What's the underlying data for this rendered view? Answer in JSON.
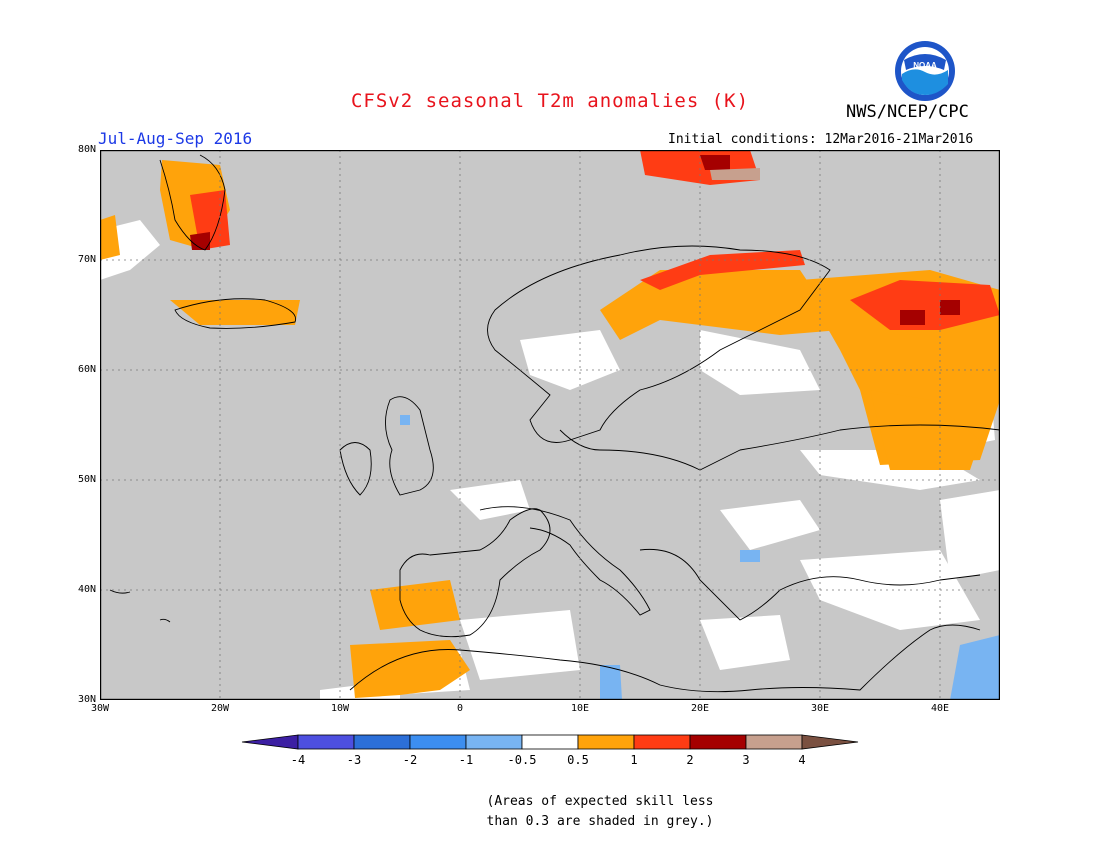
{
  "header": {
    "title": "CFSv2 seasonal T2m anomalies (K)",
    "agency": "NWS/NCEP/CPC",
    "logo_text": "NOAA",
    "season": "Jul-Aug-Sep 2016",
    "initial_conditions": "Initial conditions: 12Mar2016-21Mar2016"
  },
  "map": {
    "lon_labels": [
      "30W",
      "20W",
      "10W",
      "0",
      "10E",
      "20E",
      "30E",
      "40E"
    ],
    "lat_labels": [
      "80N",
      "70N",
      "60N",
      "50N",
      "40N",
      "30N"
    ],
    "lon_range": [
      -30,
      45
    ],
    "lat_range": [
      30,
      80
    ],
    "colors": {
      "skill_grey": "#c8c8c8",
      "neutral": "#ffffff",
      "pos_0p5_1": "#ffa30b",
      "pos_1_2": "#ff3c14",
      "pos_2_3": "#a50000",
      "pos_3_4": "#c7a08e",
      "neg_0p5_1": "#78b4f2",
      "neg_1_2": "#3c8ef0"
    }
  },
  "legend": {
    "labels": [
      "-4",
      "-3",
      "-2",
      "-1",
      "-0.5",
      "0.5",
      "1",
      "2",
      "3",
      "4"
    ],
    "colors": [
      "#3c1fa3",
      "#4d4fe0",
      "#2c6fd8",
      "#3c8ef0",
      "#78b4f2",
      "#ffffff",
      "#ffa30b",
      "#ff3c14",
      "#a50000",
      "#c7a08e",
      "#7a5040"
    ]
  },
  "note": {
    "line1": "(Areas of expected skill less",
    "line2": "than 0.3 are shaded in grey.)"
  }
}
